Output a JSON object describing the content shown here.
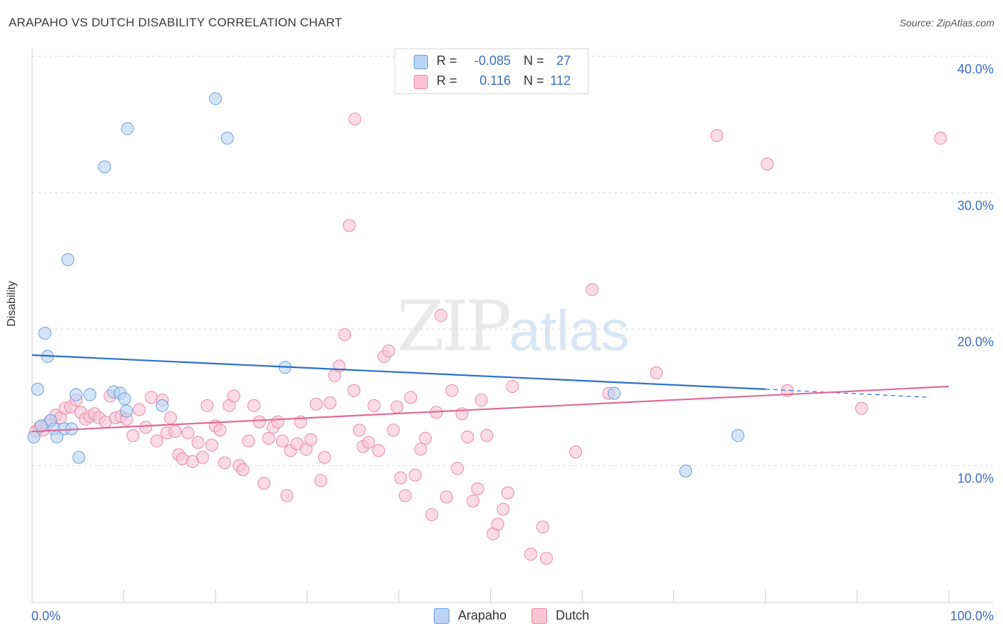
{
  "title": "ARAPAHO VS DUTCH DISABILITY CORRELATION CHART",
  "source": "Source: ZipAtlas.com",
  "watermark": {
    "zip": "ZIP",
    "atlas": "atlas"
  },
  "colors": {
    "arapaho_fill": "#b9d4f5",
    "arapaho_stroke": "#6f9fdd",
    "arapaho_line": "#2a6fcb",
    "dutch_fill": "#f9c3d3",
    "dutch_stroke": "#e88aa8",
    "dutch_line": "#e06b96",
    "tick_label": "#3c6ebf"
  },
  "legend": {
    "rows": [
      {
        "r_label": "R =",
        "r_value": "-0.085",
        "n_label": "N =",
        "n_value": "27"
      },
      {
        "r_label": "R =",
        "r_value": "0.116",
        "n_label": "N =",
        "n_value": "112"
      }
    ]
  },
  "bottom_legend": [
    "Arapaho",
    "Dutch"
  ],
  "chart_data": {
    "type": "scatter",
    "title": "ARAPAHO VS DUTCH DISABILITY CORRELATION CHART",
    "xlabel": "",
    "ylabel": "Disability",
    "xlim": [
      0,
      100
    ],
    "ylim": [
      0,
      40
    ],
    "x_tick_labels": [
      "0.0%",
      "100.0%"
    ],
    "y_ticks": [
      10,
      20,
      30,
      40
    ],
    "y_tick_labels": [
      "10.0%",
      "20.0%",
      "30.0%",
      "40.0%"
    ],
    "grid": true,
    "legend_position": "top-center",
    "series": [
      {
        "name": "Arapaho",
        "R": -0.085,
        "N": 27,
        "trend": {
          "x0": 0,
          "y0": 18.1,
          "x1": 80,
          "y1": 15.6,
          "dashed_to_x": 98,
          "dashed_to_y": 15.0
        },
        "points": [
          [
            20,
            36.9
          ],
          [
            10.4,
            34.7
          ],
          [
            21.3,
            34.0
          ],
          [
            7.9,
            31.9
          ],
          [
            3.9,
            25.1
          ],
          [
            1.4,
            19.7
          ],
          [
            1.7,
            18.0
          ],
          [
            27.6,
            17.2
          ],
          [
            0.6,
            15.6
          ],
          [
            4.8,
            15.2
          ],
          [
            6.3,
            15.2
          ],
          [
            8.9,
            15.4
          ],
          [
            9.6,
            15.3
          ],
          [
            10.1,
            14.9
          ],
          [
            14.2,
            14.4
          ],
          [
            10.3,
            14.0
          ],
          [
            2.0,
            13.3
          ],
          [
            1.0,
            12.9
          ],
          [
            2.4,
            12.7
          ],
          [
            3.5,
            12.7
          ],
          [
            4.3,
            12.7
          ],
          [
            0.2,
            12.1
          ],
          [
            2.7,
            12.1
          ],
          [
            5.1,
            10.6
          ],
          [
            63.5,
            15.3
          ],
          [
            77.0,
            12.2
          ],
          [
            71.3,
            9.6
          ]
        ]
      },
      {
        "name": "Dutch",
        "R": 0.116,
        "N": 112,
        "trend": {
          "x0": 0,
          "y0": 12.5,
          "x1": 100,
          "y1": 15.8
        },
        "points": [
          [
            0.4,
            12.5
          ],
          [
            0.8,
            12.8
          ],
          [
            1.2,
            12.6
          ],
          [
            1.6,
            13.0
          ],
          [
            2.1,
            13.3
          ],
          [
            2.6,
            13.7
          ],
          [
            3.1,
            13.5
          ],
          [
            3.6,
            14.2
          ],
          [
            4.2,
            14.3
          ],
          [
            4.8,
            14.8
          ],
          [
            5.3,
            13.9
          ],
          [
            5.8,
            13.4
          ],
          [
            6.3,
            13.6
          ],
          [
            6.8,
            13.8
          ],
          [
            7.3,
            13.5
          ],
          [
            8.0,
            13.2
          ],
          [
            8.5,
            15.1
          ],
          [
            9.1,
            13.5
          ],
          [
            9.7,
            13.6
          ],
          [
            10.3,
            13.4
          ],
          [
            11.0,
            12.2
          ],
          [
            11.7,
            14.1
          ],
          [
            12.4,
            12.8
          ],
          [
            13.0,
            15.0
          ],
          [
            13.6,
            11.8
          ],
          [
            14.2,
            14.8
          ],
          [
            14.7,
            12.4
          ],
          [
            15.1,
            13.5
          ],
          [
            15.6,
            12.5
          ],
          [
            16.0,
            10.8
          ],
          [
            16.4,
            10.5
          ],
          [
            17.0,
            12.4
          ],
          [
            17.5,
            10.3
          ],
          [
            18.1,
            11.7
          ],
          [
            18.6,
            10.6
          ],
          [
            19.1,
            14.4
          ],
          [
            19.6,
            11.5
          ],
          [
            20.0,
            12.9
          ],
          [
            20.5,
            12.6
          ],
          [
            21.0,
            10.2
          ],
          [
            21.5,
            14.4
          ],
          [
            22.0,
            15.1
          ],
          [
            22.6,
            10.0
          ],
          [
            23.0,
            9.7
          ],
          [
            23.6,
            11.8
          ],
          [
            24.2,
            14.4
          ],
          [
            24.8,
            13.2
          ],
          [
            25.3,
            8.7
          ],
          [
            25.8,
            12.0
          ],
          [
            26.3,
            12.8
          ],
          [
            26.8,
            13.2
          ],
          [
            27.3,
            11.8
          ],
          [
            27.8,
            7.8
          ],
          [
            28.2,
            11.1
          ],
          [
            28.9,
            11.6
          ],
          [
            29.3,
            13.2
          ],
          [
            29.9,
            11.2
          ],
          [
            30.4,
            11.9
          ],
          [
            31.0,
            14.5
          ],
          [
            31.5,
            8.9
          ],
          [
            31.9,
            10.6
          ],
          [
            32.5,
            14.6
          ],
          [
            33.0,
            16.6
          ],
          [
            33.5,
            17.3
          ],
          [
            34.1,
            19.6
          ],
          [
            34.6,
            27.6
          ],
          [
            35.1,
            15.5
          ],
          [
            35.7,
            12.6
          ],
          [
            36.1,
            11.4
          ],
          [
            36.7,
            11.7
          ],
          [
            37.3,
            14.4
          ],
          [
            37.8,
            11.1
          ],
          [
            38.4,
            18.0
          ],
          [
            38.9,
            18.4
          ],
          [
            39.4,
            12.6
          ],
          [
            39.8,
            14.3
          ],
          [
            40.2,
            9.1
          ],
          [
            40.7,
            7.8
          ],
          [
            41.3,
            15.0
          ],
          [
            41.8,
            9.3
          ],
          [
            42.4,
            11.2
          ],
          [
            42.9,
            12.0
          ],
          [
            43.6,
            6.4
          ],
          [
            44.1,
            13.9
          ],
          [
            44.6,
            21.0
          ],
          [
            45.2,
            7.7
          ],
          [
            45.8,
            15.5
          ],
          [
            46.4,
            9.8
          ],
          [
            46.9,
            13.8
          ],
          [
            47.5,
            12.1
          ],
          [
            48.1,
            7.4
          ],
          [
            48.6,
            8.3
          ],
          [
            49.0,
            14.8
          ],
          [
            49.6,
            12.2
          ],
          [
            50.3,
            5.0
          ],
          [
            50.8,
            5.7
          ],
          [
            51.4,
            6.8
          ],
          [
            51.9,
            8.0
          ],
          [
            52.4,
            15.8
          ],
          [
            54.4,
            3.5
          ],
          [
            55.7,
            5.5
          ],
          [
            56.1,
            3.2
          ],
          [
            59.3,
            11.0
          ],
          [
            61.1,
            22.9
          ],
          [
            74.7,
            34.2
          ],
          [
            80.2,
            32.1
          ],
          [
            82.4,
            15.5
          ],
          [
            99.1,
            34.0
          ],
          [
            35.2,
            35.4
          ],
          [
            62.9,
            15.3
          ],
          [
            68.1,
            16.8
          ],
          [
            90.5,
            14.2
          ]
        ]
      }
    ]
  }
}
